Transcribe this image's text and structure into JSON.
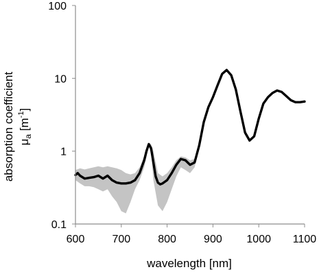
{
  "chart_data": {
    "type": "line",
    "title": "",
    "xlabel": "wavelength [nm]",
    "ylabel": {
      "line1": "absorption coefficient",
      "symbol": "μ",
      "subscript": "a",
      "unit_open": " [m",
      "exponent": "-1",
      "unit_close": "]"
    },
    "xlim": [
      600,
      1100
    ],
    "ylim": [
      0.1,
      100
    ],
    "yscale": "log",
    "grid": false,
    "legend": "none",
    "x_ticks": [
      "600",
      "700",
      "800",
      "900",
      "1000",
      "1100"
    ],
    "y_ticks": [
      "0.1",
      "1",
      "10",
      "100"
    ],
    "colors": {
      "mean": "#000000",
      "band": "#c4c4c4",
      "axis": "#8c8c8c"
    },
    "series": [
      {
        "role": "mean",
        "x": [
          600,
          605,
          610,
          620,
          630,
          640,
          650,
          660,
          670,
          680,
          690,
          700,
          710,
          720,
          730,
          740,
          750,
          755,
          760,
          765,
          770,
          775,
          780,
          785,
          790,
          800,
          810,
          820,
          830,
          840,
          850,
          860,
          870,
          880,
          890,
          900,
          910,
          920,
          930,
          940,
          950,
          960,
          970,
          980,
          990,
          1000,
          1010,
          1020,
          1030,
          1040,
          1050,
          1060,
          1070,
          1080,
          1090,
          1100
        ],
        "y": [
          0.47,
          0.5,
          0.46,
          0.42,
          0.43,
          0.44,
          0.46,
          0.42,
          0.46,
          0.4,
          0.37,
          0.36,
          0.36,
          0.37,
          0.4,
          0.5,
          0.75,
          1.0,
          1.25,
          1.1,
          0.7,
          0.45,
          0.37,
          0.35,
          0.36,
          0.4,
          0.5,
          0.65,
          0.78,
          0.75,
          0.65,
          0.7,
          1.2,
          2.5,
          4.0,
          5.5,
          8.0,
          11.5,
          13.0,
          11.0,
          7.0,
          3.5,
          1.8,
          1.4,
          1.6,
          2.8,
          4.5,
          5.5,
          6.3,
          6.8,
          6.5,
          5.7,
          5.0,
          4.7,
          4.7,
          4.8
        ]
      },
      {
        "role": "band-upper",
        "x": [
          600,
          610,
          620,
          630,
          640,
          650,
          660,
          670,
          680,
          690,
          700,
          710,
          720,
          730,
          740,
          750,
          760,
          765,
          770,
          780,
          790,
          800,
          810,
          820,
          830,
          840,
          850,
          860,
          870
        ],
        "y": [
          0.55,
          0.58,
          0.56,
          0.58,
          0.6,
          0.62,
          0.6,
          0.62,
          0.6,
          0.58,
          0.55,
          0.5,
          0.48,
          0.5,
          0.6,
          0.85,
          1.3,
          1.25,
          1.0,
          0.5,
          0.45,
          0.5,
          0.6,
          0.75,
          0.85,
          0.82,
          0.75,
          0.78,
          1.25
        ]
      },
      {
        "role": "band-lower",
        "x": [
          600,
          610,
          620,
          630,
          640,
          650,
          660,
          670,
          680,
          690,
          700,
          710,
          720,
          730,
          740,
          750,
          760,
          765,
          770,
          780,
          790,
          800,
          810,
          820,
          830,
          840,
          850,
          860,
          870
        ],
        "y": [
          0.4,
          0.36,
          0.33,
          0.33,
          0.32,
          0.3,
          0.28,
          0.3,
          0.24,
          0.2,
          0.15,
          0.14,
          0.2,
          0.3,
          0.4,
          0.6,
          1.15,
          0.95,
          0.4,
          0.18,
          0.15,
          0.2,
          0.3,
          0.45,
          0.6,
          0.55,
          0.5,
          0.6,
          1.1
        ]
      }
    ]
  }
}
